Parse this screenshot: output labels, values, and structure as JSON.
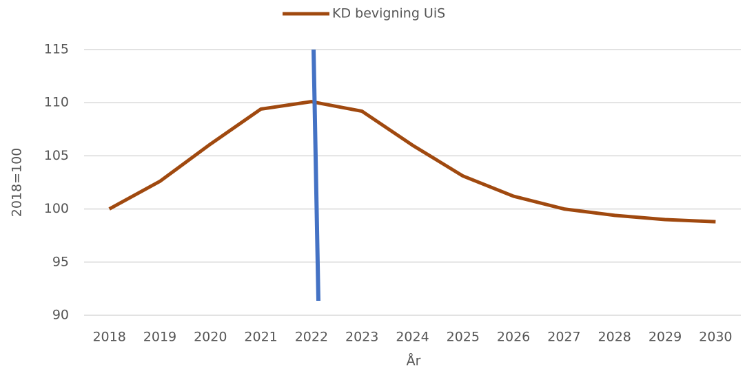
{
  "chart_data": {
    "type": "line",
    "series": [
      {
        "name": "KD bevigning UiS",
        "color": "#a0490f",
        "values": [
          100,
          102.6,
          106.1,
          109.4,
          110.1,
          109.2,
          106.0,
          103.1,
          101.2,
          100.0,
          99.4,
          99.0,
          98.8
        ]
      }
    ],
    "categories": [
      "2018",
      "2019",
      "2020",
      "2021",
      "2022",
      "2023",
      "2024",
      "2025",
      "2026",
      "2027",
      "2028",
      "2029",
      "2030"
    ],
    "x_label": "År",
    "y_label": "2018=100",
    "ylim": [
      90,
      115
    ],
    "yticks": [
      90,
      95,
      100,
      105,
      110,
      115
    ],
    "grid": true,
    "legend": "top"
  }
}
